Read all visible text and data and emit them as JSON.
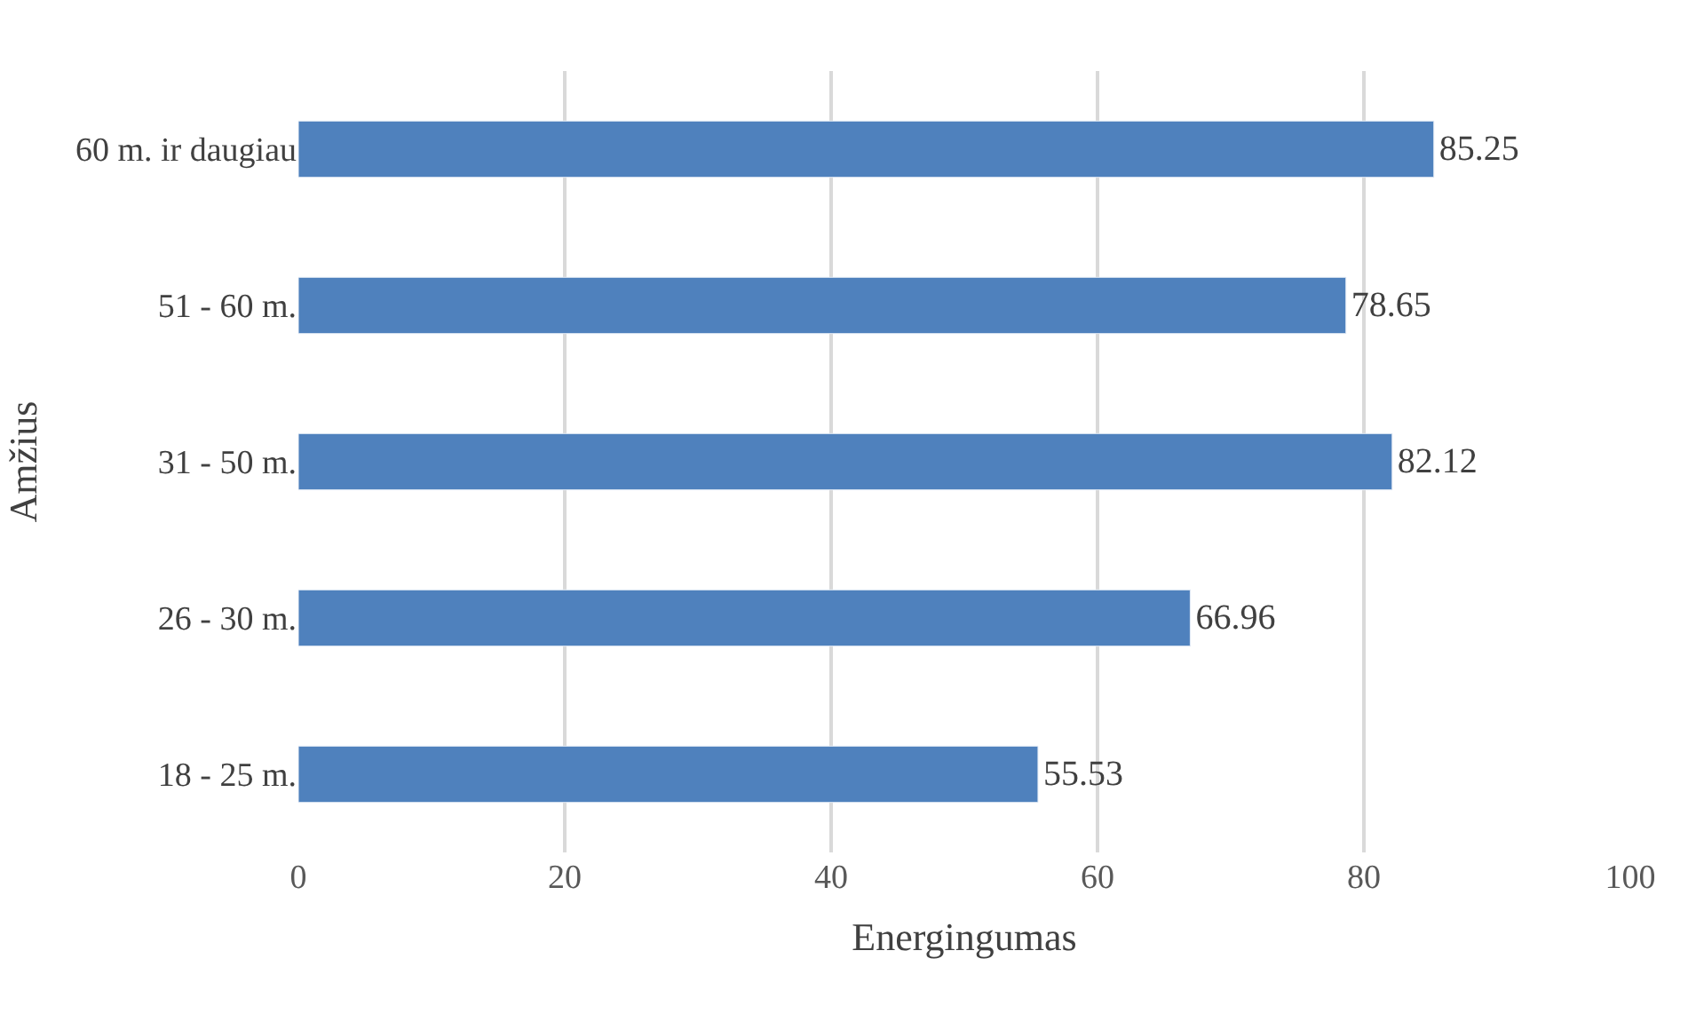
{
  "chart_data": {
    "type": "bar",
    "orientation": "horizontal",
    "xlabel": "Energingumas",
    "ylabel": "Amžius",
    "categories": [
      "60 m. ir daugiau",
      "51 - 60 m.",
      "31 - 50 m.",
      "26 - 30 m.",
      "18 - 25 m."
    ],
    "values": [
      85.25,
      78.65,
      82.12,
      66.96,
      55.53
    ],
    "color": "#4f81bd",
    "xlim": [
      0,
      100
    ],
    "xticks": [
      0,
      20,
      40,
      60,
      80,
      100
    ],
    "grid": "x",
    "data_labels": true
  }
}
